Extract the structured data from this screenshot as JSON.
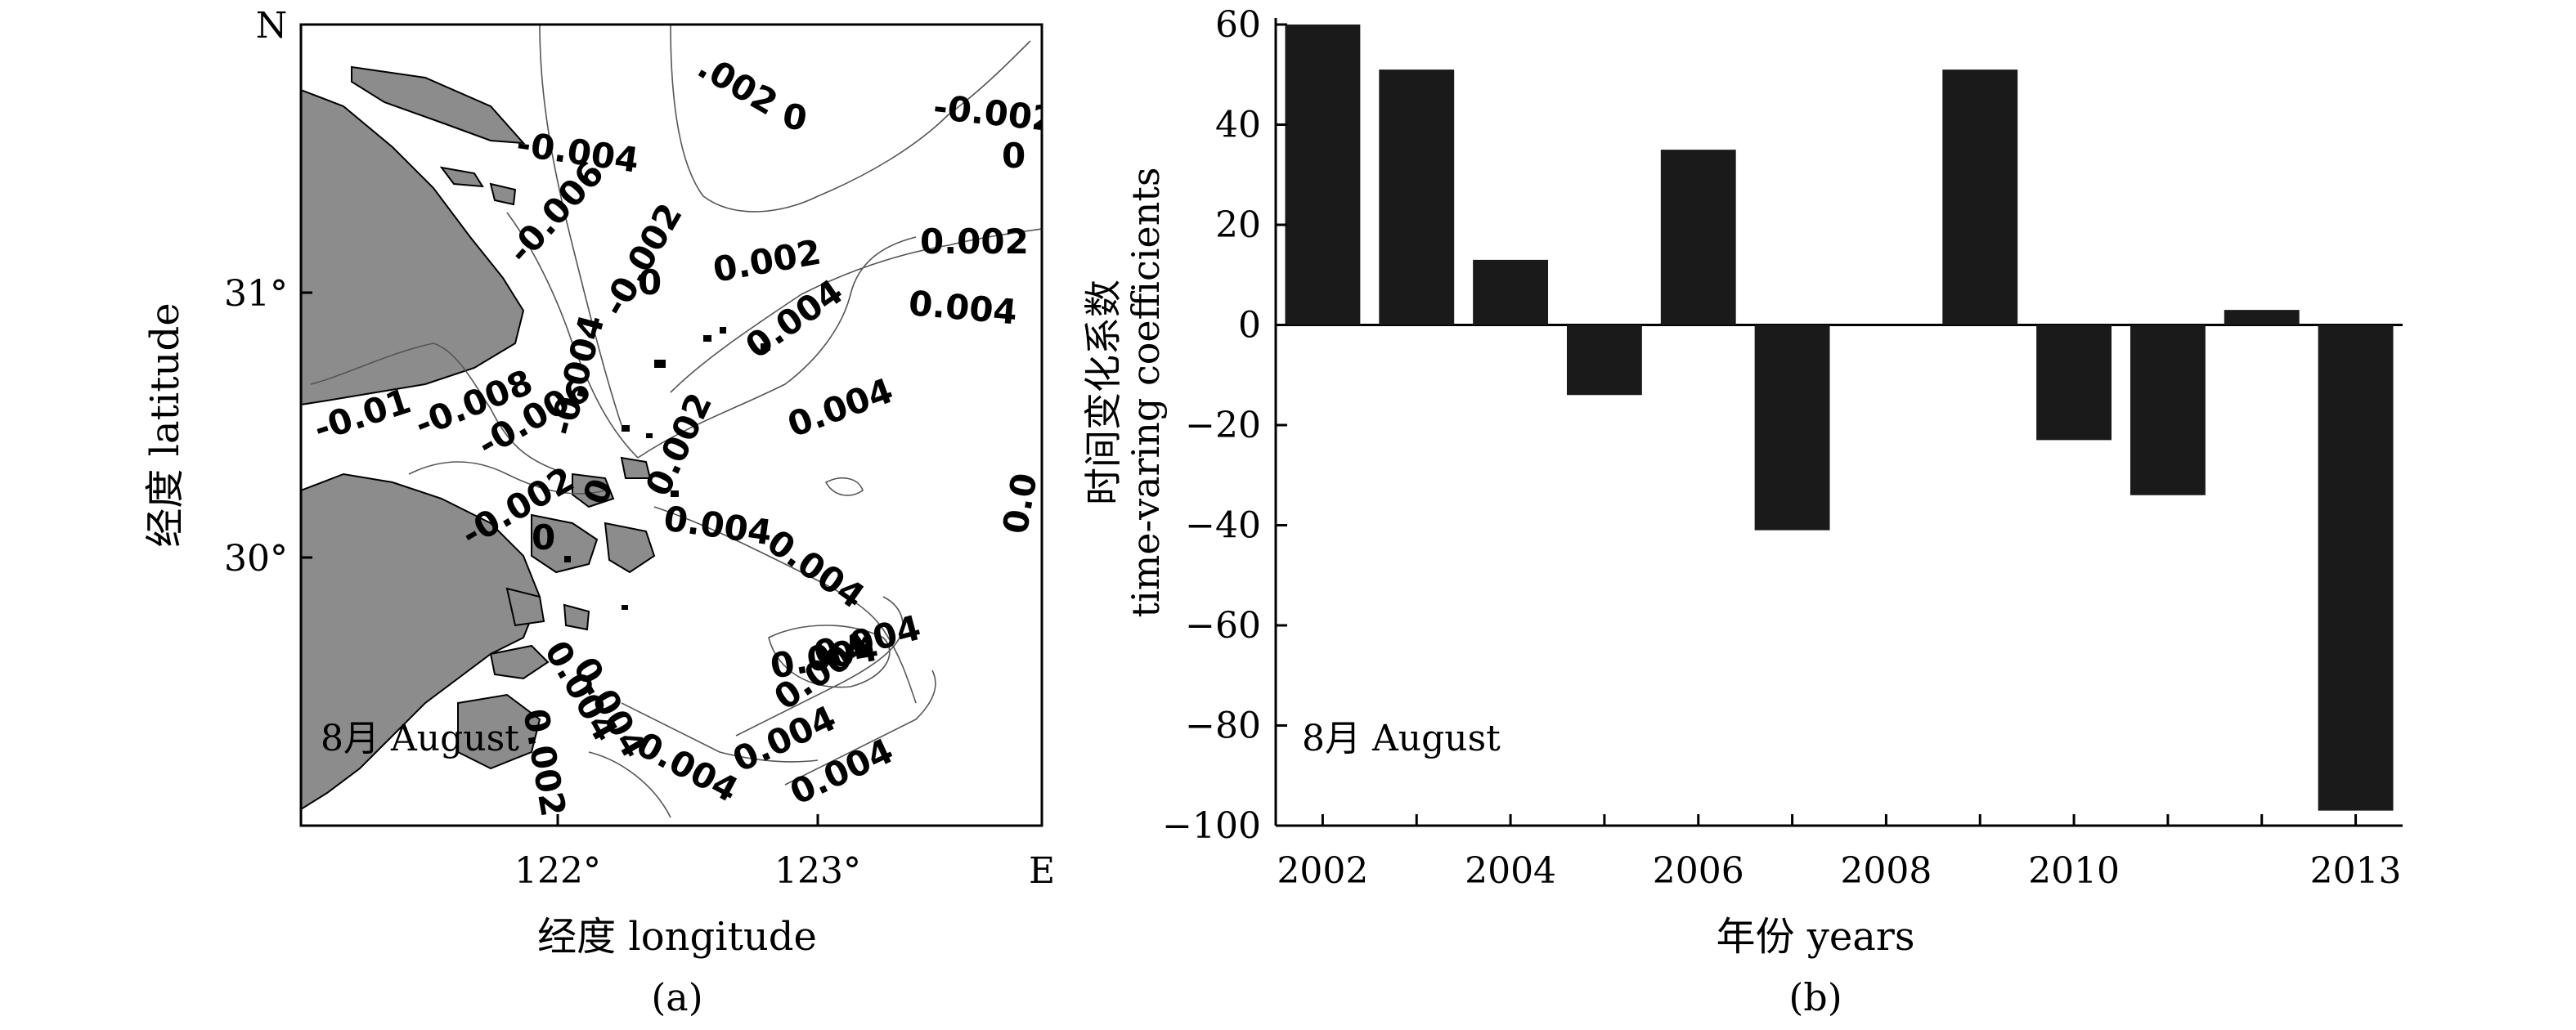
{
  "panel_a": {
    "caption": "(a)",
    "month_label": "8月 August",
    "north": "N",
    "east": "E",
    "xlabel": "经度 longitude",
    "ylabel": "经度 latitude",
    "xticks": [
      "122°",
      "123°"
    ],
    "yticks": [
      "31°",
      "30°"
    ],
    "land_color": "#8c8c8c",
    "contour_labels": [
      "-0.004",
      "-0.006",
      "-0.002",
      "0",
      "-0.01",
      "-0.008",
      "-0.004",
      "-0.006",
      "-0.002",
      "0",
      "0.002",
      "0.004",
      "0.004",
      "0.002",
      "0.004",
      "0.004",
      "0.004",
      "0",
      ".002",
      "0",
      "-0.002",
      "0",
      "0.002",
      "0.004",
      "0.004",
      "0.004",
      "0.004",
      "0.004",
      "0.004",
      "0.004",
      "0.002",
      "0.004",
      "0.0"
    ]
  },
  "chart_data": {
    "type": "bar",
    "caption": "(b)",
    "annotation": "8月 August",
    "xlabel": "年份 years",
    "ylabel": [
      "时间变化系数",
      "time-varing coefficients"
    ],
    "x": [
      2002,
      2003,
      2004,
      2005,
      2006,
      2007,
      2008,
      2009,
      2010,
      2011,
      2012,
      2013
    ],
    "values": [
      60,
      51,
      13,
      -14,
      35,
      -41,
      0,
      51,
      -23,
      -34,
      3,
      -97
    ],
    "ylim": [
      -100,
      60
    ],
    "yticks": [
      60,
      40,
      20,
      0,
      -20,
      -40,
      -60,
      -80,
      -100
    ],
    "xtick_labels": [
      "2002",
      "2004",
      "2006",
      "2008",
      "2010",
      "2013"
    ],
    "xtick_positions": [
      2002,
      2004,
      2006,
      2008,
      2010,
      2013
    ],
    "bar_color": "#1a1a1a",
    "grid": false
  }
}
